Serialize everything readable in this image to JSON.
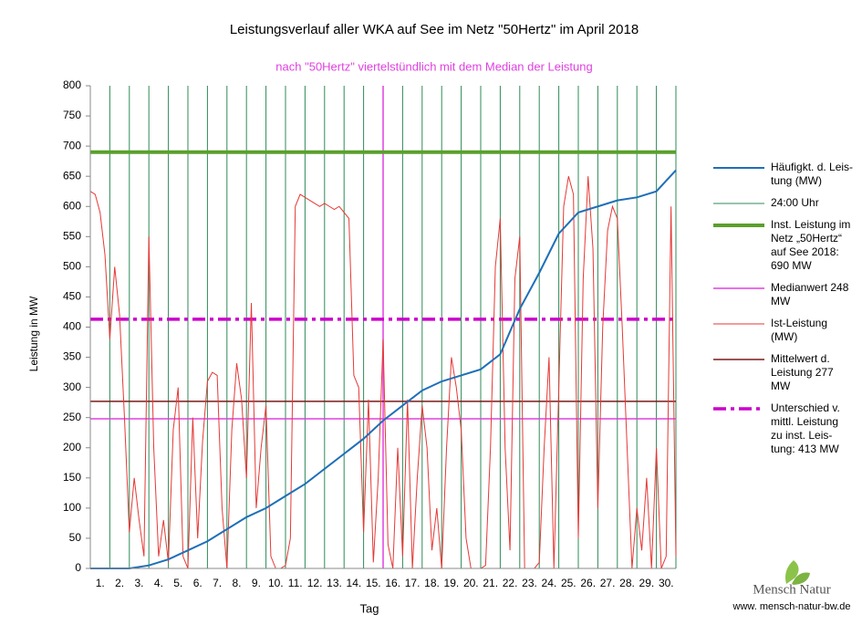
{
  "chart_data": {
    "type": "line",
    "title": "Leistungsverlauf aller WKA auf See im Netz \"50Hertz\" im April 2018",
    "subtitle": "nach \"50Hertz\" viertelstündlich mit dem Median der Leistung",
    "ylabel": "Leistung in MW",
    "xlabel": "Tag",
    "xlim": [
      0,
      30
    ],
    "ylim": [
      0,
      800
    ],
    "yticks": [
      0,
      50,
      100,
      150,
      200,
      250,
      300,
      350,
      400,
      450,
      500,
      550,
      600,
      650,
      700,
      750,
      800
    ],
    "xticks": [
      {
        "value": 0.5,
        "label": "1."
      },
      {
        "value": 1.5,
        "label": "2."
      },
      {
        "value": 2.5,
        "label": "3."
      },
      {
        "value": 3.5,
        "label": "4."
      },
      {
        "value": 4.5,
        "label": "5."
      },
      {
        "value": 5.5,
        "label": "6."
      },
      {
        "value": 6.5,
        "label": "7."
      },
      {
        "value": 7.5,
        "label": "8."
      },
      {
        "value": 8.5,
        "label": "9."
      },
      {
        "value": 9.5,
        "label": "10."
      },
      {
        "value": 10.5,
        "label": "11."
      },
      {
        "value": 11.5,
        "label": "12."
      },
      {
        "value": 12.5,
        "label": "13."
      },
      {
        "value": 13.5,
        "label": "14."
      },
      {
        "value": 14.5,
        "label": "15."
      },
      {
        "value": 15.5,
        "label": "16."
      },
      {
        "value": 16.5,
        "label": "17."
      },
      {
        "value": 17.5,
        "label": "18."
      },
      {
        "value": 18.5,
        "label": "19."
      },
      {
        "value": 19.5,
        "label": "20."
      },
      {
        "value": 20.5,
        "label": "21."
      },
      {
        "value": 21.5,
        "label": "22."
      },
      {
        "value": 22.5,
        "label": "23."
      },
      {
        "value": 23.5,
        "label": "24."
      },
      {
        "value": 24.5,
        "label": "25."
      },
      {
        "value": 25.5,
        "label": "26."
      },
      {
        "value": 26.5,
        "label": "27."
      },
      {
        "value": 27.5,
        "label": "28."
      },
      {
        "value": 28.5,
        "label": "29."
      },
      {
        "value": 29.5,
        "label": "30."
      }
    ],
    "series": [
      {
        "name": "Häufigkt. d. Leis-\ntung (MW)",
        "kind": "line",
        "color": "#1f6fb8",
        "width": 2,
        "x": [
          0,
          1,
          2,
          3,
          4,
          5,
          6,
          7,
          8,
          9,
          10,
          11,
          12,
          13,
          14,
          15,
          16,
          17,
          18,
          19,
          20,
          21,
          22,
          23,
          24,
          25,
          26,
          27,
          28,
          29,
          30
        ],
        "values": [
          0,
          0,
          0,
          5,
          15,
          30,
          45,
          65,
          85,
          100,
          120,
          140,
          165,
          190,
          215,
          245,
          270,
          295,
          310,
          320,
          330,
          355,
          430,
          490,
          555,
          590,
          600,
          610,
          615,
          625,
          660
        ]
      },
      {
        "name": "24:00 Uhr",
        "kind": "vlines",
        "color": "#2e8b57",
        "width": 1,
        "x": [
          1,
          2,
          3,
          4,
          5,
          6,
          7,
          8,
          9,
          10,
          11,
          12,
          13,
          14,
          15,
          16,
          17,
          18,
          19,
          20,
          21,
          22,
          23,
          24,
          25,
          26,
          27,
          28,
          29,
          30
        ]
      },
      {
        "name": "Inst. Leistung im\nNetz „50Hertz“\nauf See 2018:\n690 MW",
        "kind": "hline",
        "color": "#5aa02c",
        "width": 4,
        "value": 690
      },
      {
        "name": "Medianwert 248\nMW",
        "kind": "hline",
        "color": "#e040e0",
        "width": 1.5,
        "value": 248,
        "vline": 15
      },
      {
        "name": "Ist-Leistung\n(MW)",
        "kind": "line",
        "color": "#e53935",
        "width": 1,
        "x": [
          0,
          0.25,
          0.5,
          0.75,
          1,
          1.25,
          1.5,
          1.75,
          2,
          2.25,
          2.5,
          2.75,
          3,
          3.25,
          3.5,
          3.75,
          4,
          4.25,
          4.5,
          4.75,
          5,
          5.25,
          5.5,
          5.75,
          6,
          6.25,
          6.5,
          6.75,
          7,
          7.25,
          7.5,
          7.75,
          8,
          8.25,
          8.5,
          8.75,
          9,
          9.25,
          9.5,
          9.75,
          10,
          10.25,
          10.5,
          10.75,
          11,
          11.25,
          11.5,
          11.75,
          12,
          12.25,
          12.5,
          12.75,
          13,
          13.25,
          13.5,
          13.75,
          14,
          14.25,
          14.5,
          14.75,
          15,
          15.25,
          15.5,
          15.75,
          16,
          16.25,
          16.5,
          16.75,
          17,
          17.25,
          17.5,
          17.75,
          18,
          18.25,
          18.5,
          18.75,
          19,
          19.25,
          19.5,
          19.75,
          20,
          20.25,
          20.5,
          20.75,
          21,
          21.25,
          21.5,
          21.75,
          22,
          22.25,
          22.5,
          22.75,
          23,
          23.25,
          23.5,
          23.75,
          24,
          24.25,
          24.5,
          24.75,
          25,
          25.25,
          25.5,
          25.75,
          26,
          26.25,
          26.5,
          26.75,
          27,
          27.25,
          27.5,
          27.75,
          28,
          28.25,
          28.5,
          28.75,
          29,
          29.25,
          29.5,
          29.75,
          30
        ],
        "values": [
          625,
          620,
          590,
          520,
          380,
          500,
          420,
          250,
          60,
          150,
          80,
          20,
          550,
          200,
          20,
          80,
          10,
          230,
          300,
          20,
          0,
          250,
          50,
          210,
          310,
          325,
          320,
          100,
          0,
          230,
          340,
          280,
          150,
          440,
          100,
          200,
          270,
          20,
          0,
          0,
          5,
          50,
          600,
          620,
          615,
          610,
          605,
          600,
          605,
          600,
          595,
          600,
          590,
          580,
          320,
          300,
          60,
          280,
          10,
          150,
          380,
          40,
          0,
          200,
          20,
          280,
          0,
          150,
          270,
          200,
          30,
          100,
          0,
          200,
          350,
          300,
          230,
          50,
          0,
          0,
          0,
          5,
          200,
          500,
          580,
          200,
          30,
          480,
          550,
          0,
          0,
          0,
          10,
          200,
          350,
          0,
          300,
          600,
          650,
          620,
          50,
          480,
          650,
          530,
          100,
          400,
          560,
          600,
          580,
          400,
          200,
          0,
          100,
          30,
          150,
          0,
          200,
          0,
          20,
          600,
          20
        ]
      },
      {
        "name": "Mittelwert d.\nLeistung 277\nMW",
        "kind": "hline",
        "color": "#7b1a1a",
        "width": 1.5,
        "value": 277
      },
      {
        "name": "Unterschied v.\nmittl. Leistung\nzu inst. Leis-\ntung: 413 MW",
        "kind": "hline",
        "color": "#cc00cc",
        "width": 3.5,
        "dash": "14 5 4 5",
        "value": 413
      }
    ],
    "draw_order": [
      1,
      3,
      2,
      5,
      6,
      4,
      0
    ]
  },
  "logo": {
    "name": "Mensch Natur",
    "url": "www. mensch-natur-bw.de"
  }
}
